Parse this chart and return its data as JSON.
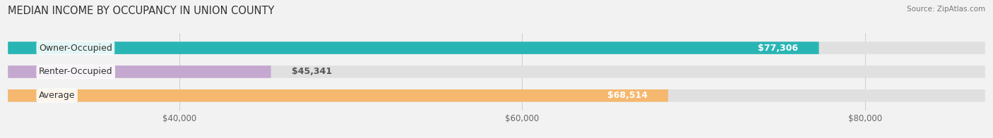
{
  "title": "MEDIAN INCOME BY OCCUPANCY IN UNION COUNTY",
  "source": "Source: ZipAtlas.com",
  "categories": [
    "Owner-Occupied",
    "Renter-Occupied",
    "Average"
  ],
  "values": [
    77306,
    45341,
    68514
  ],
  "bar_colors": [
    "#2ab5b5",
    "#c4a8d0",
    "#f5b86e"
  ],
  "bar_labels": [
    "$77,306",
    "$45,341",
    "$68,514"
  ],
  "xmin": 30000,
  "xmax": 87000,
  "xticks": [
    40000,
    60000,
    80000
  ],
  "xtick_labels": [
    "$40,000",
    "$60,000",
    "$80,000"
  ],
  "background_color": "#f2f2f2",
  "bar_bg_color": "#e0e0e0",
  "title_fontsize": 10.5,
  "label_fontsize": 9,
  "value_fontsize": 9,
  "bar_height": 0.52
}
